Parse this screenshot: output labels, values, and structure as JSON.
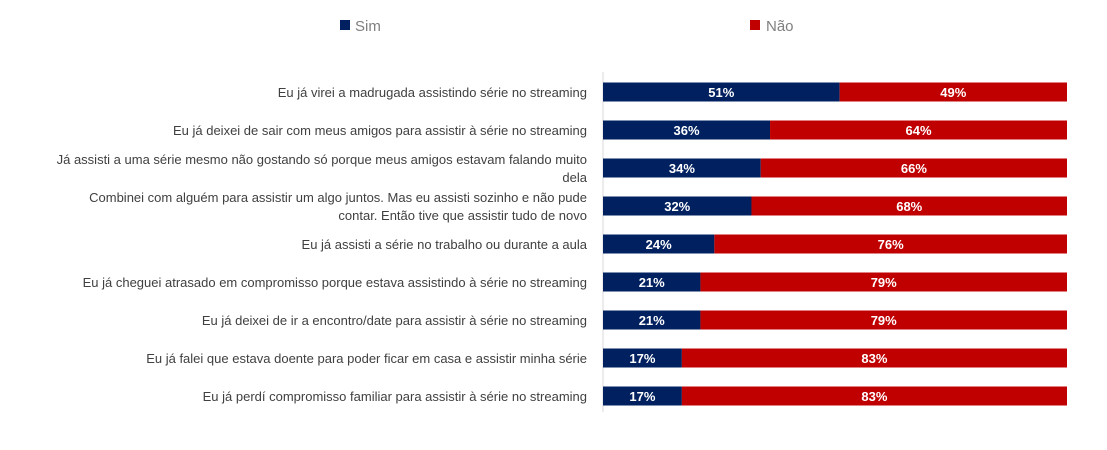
{
  "chart_data": {
    "type": "bar",
    "orientation": "horizontal",
    "stacked": true,
    "legend_position": "top",
    "grid": false,
    "xlim": [
      0,
      100
    ],
    "categories": [
      "Eu já virei a madrugada assistindo série no streaming",
      "Eu já deixei de sair com meus amigos para assistir à série no streaming",
      "Já assisti a uma série mesmo não gostando só porque meus amigos estavam falando muito dela",
      "Combinei com alguém para assistir um algo juntos. Mas eu assisti sozinho e não pude contar. Então tive que assistir tudo de novo",
      "Eu já assisti a série no trabalho ou durante a aula",
      "Eu já cheguei atrasado em  compromisso porque estava assistindo à série no streaming",
      "Eu já deixei de ir a  encontro/date para assistir à série no streaming",
      "Eu já falei que estava doente para poder ficar em casa e assistir minha série",
      "Eu já perdí  compromisso familiar para assistir à série no streaming"
    ],
    "category_lines": [
      [
        "Eu já virei a madrugada assistindo série no streaming"
      ],
      [
        "Eu já deixei de sair com meus amigos para assistir à série no streaming"
      ],
      [
        "Já assisti a uma série mesmo não gostando só porque meus amigos estavam falando muito",
        "dela"
      ],
      [
        "Combinei com alguém para assistir um algo juntos. Mas eu assisti sozinho e não pude",
        "contar. Então tive que assistir tudo de novo"
      ],
      [
        "Eu já assisti a série no trabalho ou durante a aula"
      ],
      [
        "Eu já cheguei atrasado em  compromisso porque estava assistindo à série no streaming"
      ],
      [
        "Eu já deixei de ir a  encontro/date para assistir à série no streaming"
      ],
      [
        "Eu já falei que estava doente para poder ficar em casa e assistir minha série"
      ],
      [
        "Eu já perdí  compromisso familiar para assistir à série no streaming"
      ]
    ],
    "series": [
      {
        "name": "Sim",
        "color": "#002060",
        "values": [
          51,
          36,
          34,
          32,
          24,
          21,
          21,
          17,
          17
        ]
      },
      {
        "name": "Não",
        "color": "#c00000",
        "values": [
          49,
          64,
          66,
          68,
          76,
          79,
          79,
          83,
          83
        ]
      }
    ],
    "value_suffix": "%"
  }
}
